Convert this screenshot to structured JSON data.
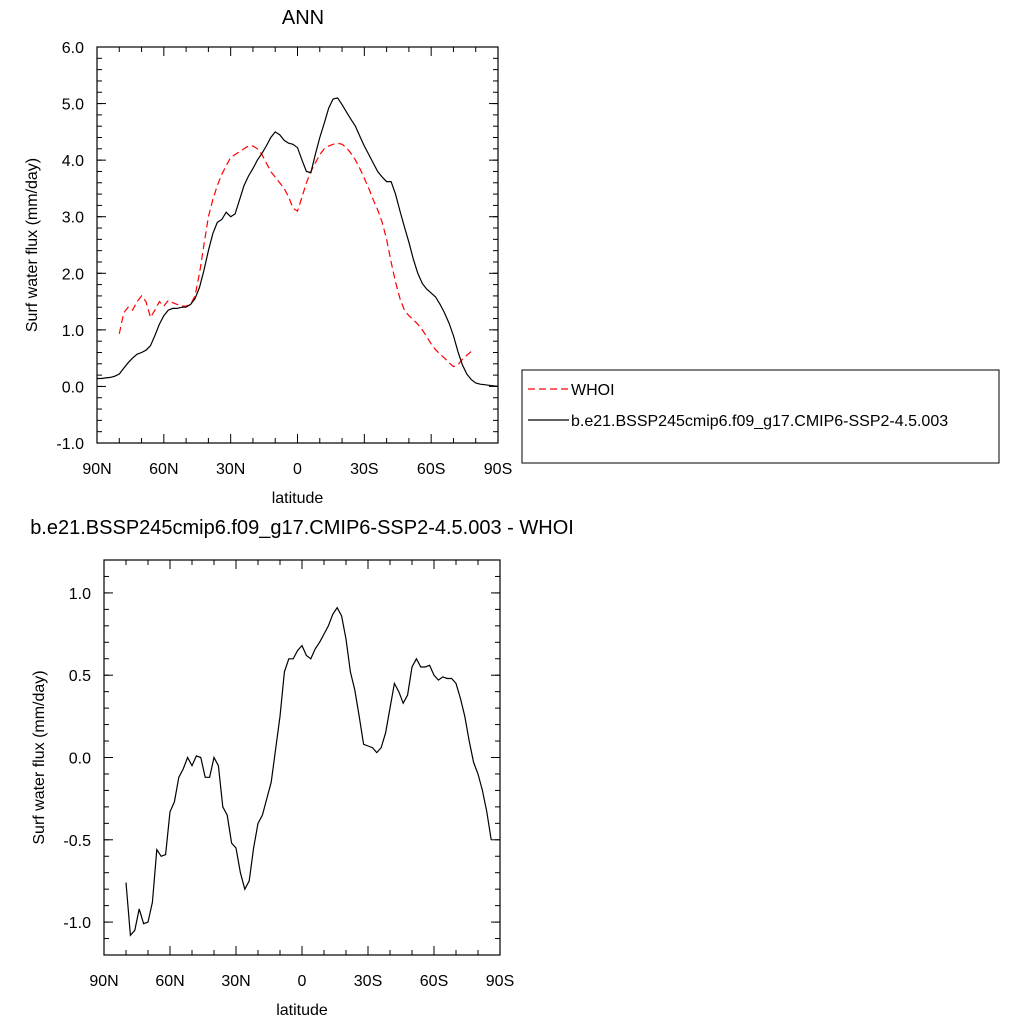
{
  "chart_data": [
    {
      "type": "line",
      "title": "ANN",
      "xlabel": "latitude",
      "ylabel": "Surf water flux (mm/day)",
      "xlim": [
        90,
        -90
      ],
      "ylim": [
        -1,
        6
      ],
      "x_ticks": [
        90,
        60,
        30,
        0,
        -30,
        -60,
        -90
      ],
      "x_tick_labels": [
        "90N",
        "60N",
        "30N",
        "0",
        "30S",
        "60S",
        "90S"
      ],
      "y_ticks": [
        -1,
        0,
        1,
        2,
        3,
        4,
        5,
        6
      ],
      "y_tick_labels": [
        "-1.0",
        "0.0",
        "1.0",
        "2.0",
        "3.0",
        "4.0",
        "5.0",
        "6.0"
      ],
      "legend_position": "right",
      "series": [
        {
          "name": "WHOI",
          "color": "#ff0000",
          "dash": "dashed",
          "points": [
            [
              80,
              0.93
            ],
            [
              78,
              1.3
            ],
            [
              76,
              1.4
            ],
            [
              74,
              1.35
            ],
            [
              72,
              1.5
            ],
            [
              70,
              1.6
            ],
            [
              68,
              1.5
            ],
            [
              66,
              1.22
            ],
            [
              64,
              1.35
            ],
            [
              62,
              1.5
            ],
            [
              60,
              1.42
            ],
            [
              58,
              1.52
            ],
            [
              56,
              1.48
            ],
            [
              54,
              1.45
            ],
            [
              52,
              1.42
            ],
            [
              50,
              1.42
            ],
            [
              48,
              1.45
            ],
            [
              46,
              1.6
            ],
            [
              44,
              2.0
            ],
            [
              42,
              2.5
            ],
            [
              40,
              3.0
            ],
            [
              38,
              3.3
            ],
            [
              36,
              3.55
            ],
            [
              34,
              3.75
            ],
            [
              32,
              3.9
            ],
            [
              30,
              4.05
            ],
            [
              28,
              4.1
            ],
            [
              26,
              4.15
            ],
            [
              24,
              4.2
            ],
            [
              22,
              4.25
            ],
            [
              20,
              4.25
            ],
            [
              18,
              4.2
            ],
            [
              16,
              4.1
            ],
            [
              14,
              3.95
            ],
            [
              12,
              3.8
            ],
            [
              10,
              3.7
            ],
            [
              8,
              3.6
            ],
            [
              6,
              3.5
            ],
            [
              4,
              3.35
            ],
            [
              2,
              3.15
            ],
            [
              0,
              3.1
            ],
            [
              -2,
              3.35
            ],
            [
              -4,
              3.6
            ],
            [
              -6,
              3.8
            ],
            [
              -8,
              3.95
            ],
            [
              -10,
              4.1
            ],
            [
              -12,
              4.2
            ],
            [
              -14,
              4.25
            ],
            [
              -16,
              4.28
            ],
            [
              -18,
              4.3
            ],
            [
              -20,
              4.28
            ],
            [
              -22,
              4.22
            ],
            [
              -24,
              4.12
            ],
            [
              -26,
              4.0
            ],
            [
              -28,
              3.85
            ],
            [
              -30,
              3.68
            ],
            [
              -32,
              3.5
            ],
            [
              -34,
              3.3
            ],
            [
              -36,
              3.12
            ],
            [
              -38,
              2.9
            ],
            [
              -40,
              2.6
            ],
            [
              -42,
              2.2
            ],
            [
              -44,
              1.85
            ],
            [
              -46,
              1.55
            ],
            [
              -48,
              1.35
            ],
            [
              -50,
              1.25
            ],
            [
              -52,
              1.18
            ],
            [
              -54,
              1.1
            ],
            [
              -56,
              1.0
            ],
            [
              -58,
              0.88
            ],
            [
              -60,
              0.75
            ],
            [
              -62,
              0.65
            ],
            [
              -64,
              0.57
            ],
            [
              -66,
              0.5
            ],
            [
              -68,
              0.42
            ],
            [
              -70,
              0.35
            ],
            [
              -72,
              0.38
            ],
            [
              -74,
              0.48
            ],
            [
              -76,
              0.55
            ],
            [
              -78,
              0.62
            ]
          ]
        },
        {
          "name": "b.e21.BSSP245cmip6.f09_g17.CMIP6-SSP2-4.5.003",
          "color": "#000000",
          "dash": "solid",
          "points": [
            [
              90,
              0.14
            ],
            [
              88,
              0.14
            ],
            [
              86,
              0.15
            ],
            [
              84,
              0.16
            ],
            [
              82,
              0.18
            ],
            [
              80,
              0.22
            ],
            [
              78,
              0.32
            ],
            [
              76,
              0.42
            ],
            [
              74,
              0.5
            ],
            [
              72,
              0.57
            ],
            [
              70,
              0.6
            ],
            [
              68,
              0.64
            ],
            [
              66,
              0.72
            ],
            [
              64,
              0.9
            ],
            [
              62,
              1.1
            ],
            [
              60,
              1.25
            ],
            [
              58,
              1.35
            ],
            [
              56,
              1.38
            ],
            [
              54,
              1.38
            ],
            [
              52,
              1.4
            ],
            [
              50,
              1.4
            ],
            [
              48,
              1.45
            ],
            [
              46,
              1.55
            ],
            [
              44,
              1.75
            ],
            [
              42,
              2.05
            ],
            [
              40,
              2.4
            ],
            [
              38,
              2.7
            ],
            [
              36,
              2.9
            ],
            [
              34,
              2.95
            ],
            [
              32,
              3.08
            ],
            [
              30,
              3.0
            ],
            [
              28,
              3.05
            ],
            [
              26,
              3.3
            ],
            [
              24,
              3.55
            ],
            [
              22,
              3.72
            ],
            [
              20,
              3.85
            ],
            [
              18,
              4.0
            ],
            [
              16,
              4.12
            ],
            [
              14,
              4.25
            ],
            [
              12,
              4.4
            ],
            [
              10,
              4.5
            ],
            [
              8,
              4.45
            ],
            [
              6,
              4.35
            ],
            [
              4,
              4.3
            ],
            [
              2,
              4.28
            ],
            [
              0,
              4.22
            ],
            [
              -2,
              4.0
            ],
            [
              -4,
              3.8
            ],
            [
              -6,
              3.78
            ],
            [
              -8,
              4.1
            ],
            [
              -10,
              4.4
            ],
            [
              -12,
              4.65
            ],
            [
              -14,
              4.92
            ],
            [
              -16,
              5.08
            ],
            [
              -18,
              5.1
            ],
            [
              -20,
              4.98
            ],
            [
              -22,
              4.85
            ],
            [
              -24,
              4.72
            ],
            [
              -26,
              4.6
            ],
            [
              -28,
              4.42
            ],
            [
              -30,
              4.25
            ],
            [
              -32,
              4.1
            ],
            [
              -34,
              3.95
            ],
            [
              -36,
              3.8
            ],
            [
              -38,
              3.7
            ],
            [
              -40,
              3.62
            ],
            [
              -42,
              3.62
            ],
            [
              -44,
              3.4
            ],
            [
              -46,
              3.1
            ],
            [
              -48,
              2.82
            ],
            [
              -50,
              2.55
            ],
            [
              -52,
              2.25
            ],
            [
              -54,
              2.0
            ],
            [
              -56,
              1.82
            ],
            [
              -58,
              1.72
            ],
            [
              -60,
              1.65
            ],
            [
              -62,
              1.58
            ],
            [
              -64,
              1.45
            ],
            [
              -66,
              1.3
            ],
            [
              -68,
              1.12
            ],
            [
              -70,
              0.9
            ],
            [
              -72,
              0.62
            ],
            [
              -74,
              0.38
            ],
            [
              -76,
              0.22
            ],
            [
              -78,
              0.12
            ],
            [
              -80,
              0.06
            ],
            [
              -82,
              0.04
            ],
            [
              -84,
              0.03
            ],
            [
              -86,
              0.02
            ],
            [
              -88,
              0.01
            ],
            [
              -90,
              0.0
            ]
          ]
        }
      ]
    },
    {
      "type": "line",
      "title": "b.e21.BSSP245cmip6.f09_g17.CMIP6-SSP2-4.5.003 - WHOI",
      "xlabel": "latitude",
      "ylabel": "Surf water flux (mm/day)",
      "xlim": [
        90,
        -90
      ],
      "ylim": [
        -1.2,
        1.2
      ],
      "x_ticks": [
        90,
        60,
        30,
        0,
        -30,
        -60,
        -90
      ],
      "x_tick_labels": [
        "90N",
        "60N",
        "30N",
        "0",
        "30S",
        "60S",
        "90S"
      ],
      "y_ticks": [
        -1.0,
        -0.5,
        0.0,
        0.5,
        1.0
      ],
      "y_tick_labels": [
        "-1.0",
        "-0.5",
        "0.0",
        "0.5",
        "1.0"
      ],
      "series": [
        {
          "color": "#000000",
          "dash": "solid",
          "points": [
            [
              80,
              -0.76
            ],
            [
              78,
              -1.08
            ],
            [
              76,
              -1.05
            ],
            [
              74,
              -0.92
            ],
            [
              72,
              -1.01
            ],
            [
              70,
              -1.0
            ],
            [
              68,
              -0.88
            ],
            [
              66,
              -0.56
            ],
            [
              64,
              -0.6
            ],
            [
              62,
              -0.59
            ],
            [
              60,
              -0.33
            ],
            [
              58,
              -0.27
            ],
            [
              56,
              -0.12
            ],
            [
              54,
              -0.07
            ],
            [
              52,
              0.0
            ],
            [
              50,
              -0.05
            ],
            [
              48,
              0.01
            ],
            [
              46,
              0.0
            ],
            [
              44,
              -0.12
            ],
            [
              42,
              -0.12
            ],
            [
              40,
              0.0
            ],
            [
              38,
              -0.05
            ],
            [
              36,
              -0.3
            ],
            [
              34,
              -0.35
            ],
            [
              32,
              -0.52
            ],
            [
              30,
              -0.55
            ],
            [
              28,
              -0.7
            ],
            [
              26,
              -0.8
            ],
            [
              24,
              -0.75
            ],
            [
              22,
              -0.55
            ],
            [
              20,
              -0.4
            ],
            [
              18,
              -0.35
            ],
            [
              16,
              -0.25
            ],
            [
              14,
              -0.15
            ],
            [
              12,
              0.05
            ],
            [
              10,
              0.25
            ],
            [
              8,
              0.52
            ],
            [
              6,
              0.6
            ],
            [
              4,
              0.6
            ],
            [
              2,
              0.65
            ],
            [
              0,
              0.68
            ],
            [
              -2,
              0.62
            ],
            [
              -4,
              0.6
            ],
            [
              -6,
              0.66
            ],
            [
              -8,
              0.7
            ],
            [
              -10,
              0.75
            ],
            [
              -12,
              0.8
            ],
            [
              -14,
              0.87
            ],
            [
              -16,
              0.91
            ],
            [
              -18,
              0.86
            ],
            [
              -20,
              0.72
            ],
            [
              -22,
              0.52
            ],
            [
              -24,
              0.41
            ],
            [
              -26,
              0.25
            ],
            [
              -28,
              0.08
            ],
            [
              -30,
              0.07
            ],
            [
              -32,
              0.06
            ],
            [
              -34,
              0.03
            ],
            [
              -36,
              0.06
            ],
            [
              -38,
              0.15
            ],
            [
              -40,
              0.3
            ],
            [
              -42,
              0.45
            ],
            [
              -44,
              0.4
            ],
            [
              -46,
              0.33
            ],
            [
              -48,
              0.38
            ],
            [
              -50,
              0.55
            ],
            [
              -52,
              0.6
            ],
            [
              -54,
              0.55
            ],
            [
              -56,
              0.55
            ],
            [
              -58,
              0.56
            ],
            [
              -60,
              0.5
            ],
            [
              -62,
              0.47
            ],
            [
              -64,
              0.49
            ],
            [
              -66,
              0.48
            ],
            [
              -68,
              0.48
            ],
            [
              -70,
              0.45
            ],
            [
              -72,
              0.36
            ],
            [
              -74,
              0.25
            ],
            [
              -76,
              0.1
            ],
            [
              -78,
              -0.03
            ],
            [
              -80,
              -0.1
            ],
            [
              -82,
              -0.2
            ],
            [
              -84,
              -0.33
            ],
            [
              -86,
              -0.5
            ]
          ]
        }
      ]
    }
  ]
}
